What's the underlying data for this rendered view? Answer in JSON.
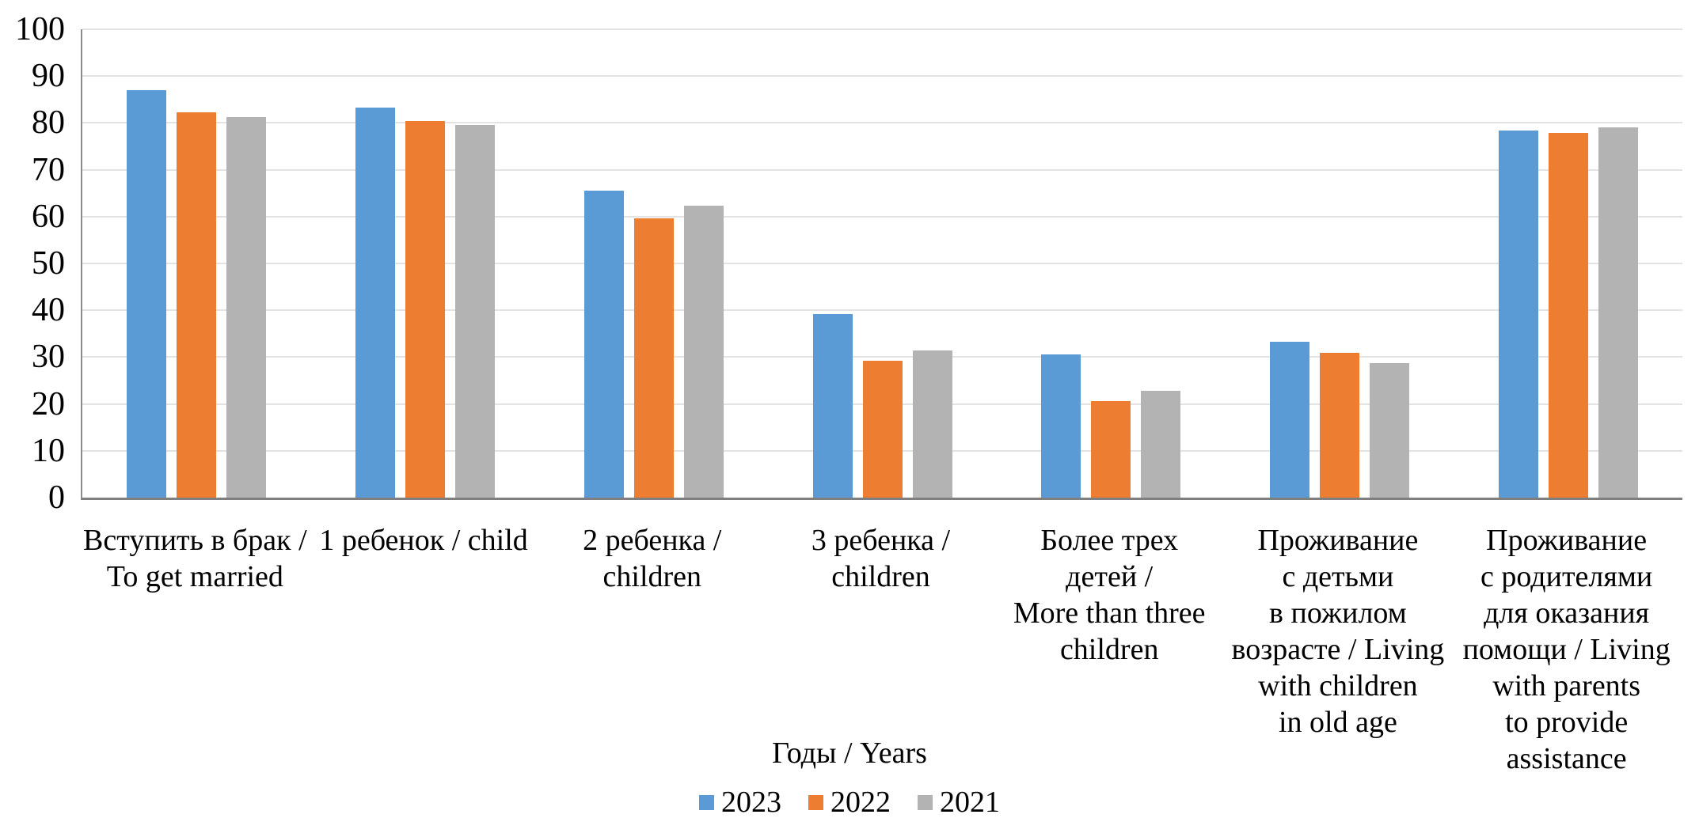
{
  "chart_data": {
    "type": "bar",
    "title": "",
    "legend_title": "Годы / Years",
    "legend_position": "bottom",
    "grid": true,
    "y_axis": {
      "min": 0,
      "max": 100,
      "step": 10,
      "ticks": [
        0,
        10,
        20,
        30,
        40,
        50,
        60,
        70,
        80,
        90,
        100
      ]
    },
    "categories": [
      {
        "label": "Вступить в брак / To get married",
        "lines": [
          "Вступить в брак /",
          "To get married"
        ]
      },
      {
        "label": "1 ребенок / child",
        "lines": [
          "1 ребенок / child"
        ]
      },
      {
        "label": "2 ребенка / children",
        "lines": [
          "2 ребенка /",
          "children"
        ]
      },
      {
        "label": "3 ребенка / children",
        "lines": [
          "3 ребенка /",
          "children"
        ]
      },
      {
        "label": "Более трех детей / More than three children",
        "lines": [
          "Более трех",
          "детей /",
          "More than three",
          "children"
        ]
      },
      {
        "label": "Проживание с детьми в пожилом возрасте / Living with children in old age",
        "lines": [
          "Проживание",
          "с детьми",
          "в пожилом",
          "возрасте / Living",
          "with children",
          "in old age"
        ]
      },
      {
        "label": "Проживание с родителями для оказания помощи / Living with parents to provide assistance",
        "lines": [
          "Проживание",
          "с родителями",
          "для оказания",
          "помощи / Living",
          "with parents",
          "to provide",
          "assistance"
        ]
      }
    ],
    "series": [
      {
        "name": "2023",
        "color": "#5B9BD5",
        "values": [
          87.0,
          83.3,
          65.6,
          39.2,
          30.5,
          33.3,
          78.4
        ]
      },
      {
        "name": "2022",
        "color": "#ED7D31",
        "values": [
          82.3,
          80.4,
          59.7,
          29.2,
          20.6,
          30.9,
          77.8
        ]
      },
      {
        "name": "2021",
        "color": "#B3B3B3",
        "values": [
          81.2,
          79.6,
          62.3,
          31.5,
          22.8,
          28.7,
          79.0
        ]
      }
    ],
    "colors": {
      "gridline": "#E3E3E3",
      "axis_line": "#7F7F7F",
      "text": "#000000",
      "background": "#FFFFFF"
    }
  }
}
